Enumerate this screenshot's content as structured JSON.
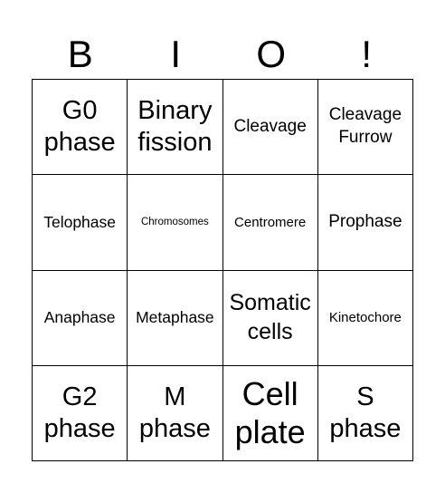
{
  "header": {
    "letters": [
      "B",
      "I",
      "O",
      "!"
    ]
  },
  "grid": {
    "rows": [
      [
        "G0\nphase",
        "Binary\nfission",
        "Cleavage",
        "Cleavage\nFurrow"
      ],
      [
        "Telophase",
        "Chromosomes",
        "Centromere",
        "Prophase"
      ],
      [
        "Anaphase",
        "Metaphase",
        "Somatic\ncells",
        "Kinetochore"
      ],
      [
        "G2\nphase",
        "M\nphase",
        "Cell\nplate",
        "S\nphase"
      ]
    ]
  }
}
